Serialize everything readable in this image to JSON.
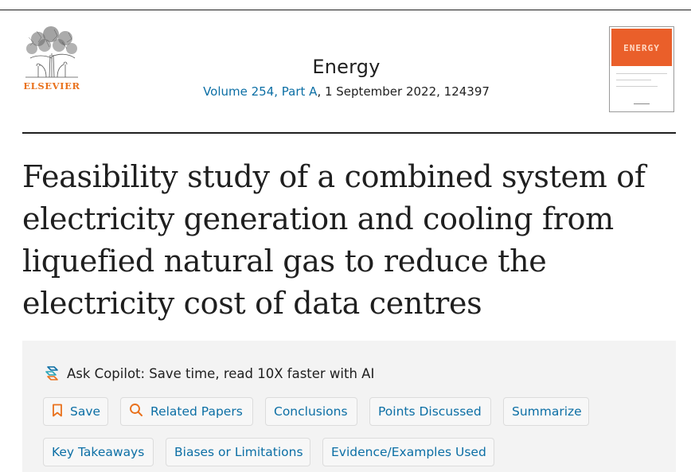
{
  "publisher": {
    "name": "ELSEVIER"
  },
  "journal": {
    "title": "Energy",
    "volume_link": "Volume 254, Part A",
    "date_article": ", 1 September 2022, 124397"
  },
  "cover": {
    "word": "ENERGY",
    "accent_color": "#ea5f2a"
  },
  "article": {
    "title": "Feasibility study of a combined system of electricity generation and cooling from liquefied natural gas to reduce the electricity cost of data centres"
  },
  "copilot": {
    "prompt": "Ask Copilot: Save time, read 10X faster with AI",
    "buttons": [
      {
        "label": "Save",
        "icon": "bookmark-icon"
      },
      {
        "label": "Related Papers",
        "icon": "search-icon"
      },
      {
        "label": "Conclusions"
      },
      {
        "label": "Points Discussed"
      },
      {
        "label": "Summarize"
      },
      {
        "label": "Key Takeaways"
      },
      {
        "label": "Biases or Limitations"
      },
      {
        "label": "Evidence/Examples Used"
      }
    ]
  },
  "colors": {
    "link": "#0c6fa5",
    "brand": "#e9711c",
    "panel": "#f3f3f3"
  }
}
